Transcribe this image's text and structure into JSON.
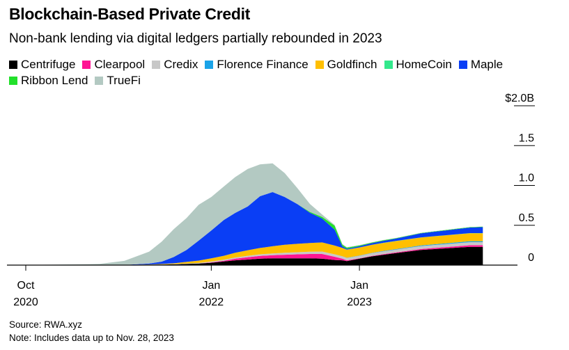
{
  "title": "Blockchain-Based Private Credit",
  "subtitle": "Non-bank lending via digital ledgers partially rebounded in 2023",
  "source": "Source: RWA.xyz",
  "note": "Note: Includes data up to Nov. 28, 2023",
  "chart_data": {
    "type": "area",
    "stacked": true,
    "title": "Blockchain-Based Private Credit",
    "subtitle": "Non-bank lending via digital ledgers partially rebounded in 2023",
    "x": [
      "2020-10",
      "2020-12",
      "2021-02",
      "2021-04",
      "2021-06",
      "2021-08",
      "2021-09",
      "2021-10",
      "2021-11",
      "2021-12",
      "2022-01",
      "2022-02",
      "2022-03",
      "2022-04",
      "2022-05",
      "2022-06",
      "2022-07",
      "2022-08",
      "2022-09",
      "2022-10",
      "2022-11",
      "2022-11-20",
      "2022-12",
      "2023-01",
      "2023-02",
      "2023-03",
      "2023-04",
      "2023-05",
      "2023-06",
      "2023-07",
      "2023-08",
      "2023-09",
      "2023-10",
      "2023-11"
    ],
    "x_ticks": [
      {
        "x": "2020-10",
        "label1": "Oct",
        "label2": "2020"
      },
      {
        "x": "2022-01",
        "label1": "Jan",
        "label2": "2022"
      },
      {
        "x": "2023-01",
        "label1": "Jan",
        "label2": "2023"
      }
    ],
    "y_ticks": [
      {
        "value": 0,
        "label": "0"
      },
      {
        "value": 0.5,
        "label": "0.5"
      },
      {
        "value": 1.0,
        "label": "1.0"
      },
      {
        "value": 1.5,
        "label": "1.5"
      },
      {
        "value": 2.0,
        "label": "$2.0B"
      }
    ],
    "ylim": [
      0,
      2.0
    ],
    "y_unit": "$B",
    "legend_position": "top",
    "series": [
      {
        "name": "Centrifuge",
        "color": "#000000",
        "values": [
          0,
          0,
          0,
          0,
          0.002,
          0.005,
          0.007,
          0.01,
          0.015,
          0.02,
          0.03,
          0.045,
          0.06,
          0.07,
          0.08,
          0.085,
          0.085,
          0.085,
          0.085,
          0.08,
          0.065,
          0.06,
          0.05,
          0.08,
          0.11,
          0.13,
          0.15,
          0.17,
          0.19,
          0.2,
          0.21,
          0.22,
          0.23,
          0.23
        ]
      },
      {
        "name": "Clearpool",
        "color": "#ff1493",
        "values": [
          0,
          0,
          0,
          0,
          0,
          0,
          0,
          0,
          0,
          0,
          0.005,
          0.01,
          0.02,
          0.03,
          0.035,
          0.04,
          0.045,
          0.05,
          0.055,
          0.06,
          0.04,
          0.02,
          0.01,
          0.005,
          0.006,
          0.008,
          0.01,
          0.01,
          0.012,
          0.014,
          0.016,
          0.018,
          0.02,
          0.02
        ]
      },
      {
        "name": "Credix",
        "color": "#c8c8c8",
        "values": [
          0,
          0,
          0,
          0,
          0,
          0.001,
          0.002,
          0.003,
          0.005,
          0.007,
          0.01,
          0.012,
          0.015,
          0.017,
          0.02,
          0.022,
          0.025,
          0.027,
          0.028,
          0.03,
          0.03,
          0.03,
          0.03,
          0.032,
          0.034,
          0.035,
          0.035,
          0.036,
          0.036,
          0.037,
          0.037,
          0.038,
          0.038,
          0.038
        ]
      },
      {
        "name": "Florence Finance",
        "color": "#1aa3e8",
        "values": [
          0,
          0,
          0,
          0,
          0,
          0,
          0,
          0,
          0,
          0,
          0,
          0,
          0,
          0,
          0,
          0,
          0,
          0,
          0,
          0,
          0,
          0.001,
          0.002,
          0.003,
          0.004,
          0.005,
          0.006,
          0.007,
          0.008,
          0.009,
          0.01,
          0.011,
          0.012,
          0.012
        ]
      },
      {
        "name": "Goldfinch",
        "color": "#ffbf00",
        "values": [
          0,
          0,
          0,
          0,
          0.001,
          0.003,
          0.005,
          0.01,
          0.02,
          0.03,
          0.04,
          0.05,
          0.06,
          0.07,
          0.08,
          0.09,
          0.1,
          0.105,
          0.11,
          0.115,
          0.11,
          0.105,
          0.1,
          0.1,
          0.1,
          0.1,
          0.1,
          0.1,
          0.1,
          0.1,
          0.1,
          0.1,
          0.1,
          0.1
        ]
      },
      {
        "name": "HomeCoin",
        "color": "#33e88c",
        "values": [
          0,
          0,
          0,
          0,
          0,
          0,
          0,
          0,
          0,
          0,
          0,
          0,
          0,
          0,
          0,
          0,
          0,
          0,
          0,
          0,
          0,
          0.001,
          0.002,
          0.002,
          0.002,
          0.002,
          0.002,
          0.002,
          0.002,
          0.002,
          0.002,
          0.002,
          0.002,
          0.002
        ]
      },
      {
        "name": "Maple",
        "color": "#0a3ef5",
        "values": [
          0,
          0,
          0,
          0,
          0,
          0.01,
          0.03,
          0.08,
          0.15,
          0.25,
          0.35,
          0.45,
          0.5,
          0.55,
          0.65,
          0.68,
          0.6,
          0.5,
          0.38,
          0.3,
          0.2,
          0.02,
          0.01,
          0.015,
          0.02,
          0.025,
          0.03,
          0.04,
          0.05,
          0.055,
          0.06,
          0.065,
          0.07,
          0.075
        ]
      },
      {
        "name": "Ribbon Lend",
        "color": "#22e02b",
        "values": [
          0,
          0,
          0,
          0,
          0,
          0,
          0,
          0,
          0,
          0,
          0,
          0,
          0,
          0,
          0,
          0,
          0,
          0,
          0.01,
          0.02,
          0.05,
          0.02,
          0.015,
          0.01,
          0.008,
          0.007,
          0.006,
          0.005,
          0.005,
          0.005,
          0.005,
          0.005,
          0.005,
          0.005
        ]
      },
      {
        "name": "TrueFi",
        "color": "#b3c9c2",
        "values": [
          0.002,
          0.005,
          0.01,
          0.015,
          0.05,
          0.15,
          0.25,
          0.35,
          0.4,
          0.45,
          0.42,
          0.42,
          0.45,
          0.47,
          0.4,
          0.36,
          0.3,
          0.2,
          0.1,
          0.03,
          0.01,
          0.008,
          0.006,
          0.004,
          0.003,
          0.003,
          0.002,
          0.002,
          0.002,
          0.002,
          0.002,
          0.002,
          0.002,
          0.002
        ]
      }
    ]
  }
}
